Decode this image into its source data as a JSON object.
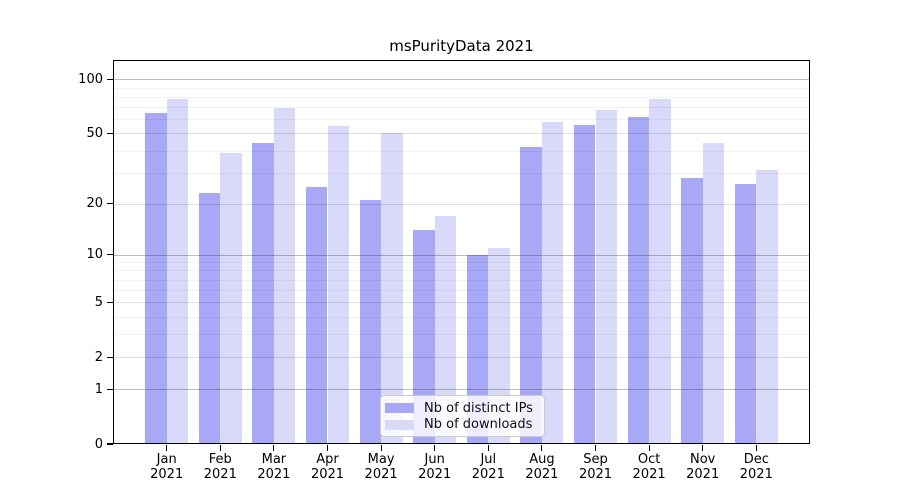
{
  "chart_data": {
    "type": "bar",
    "title": "msPurityData 2021",
    "scale": "log1p",
    "grid": true,
    "categories": [
      "Jan",
      "Feb",
      "Mar",
      "Apr",
      "May",
      "Jun",
      "Jul",
      "Aug",
      "Sep",
      "Oct",
      "Nov",
      "Dec"
    ],
    "category_year": "2021",
    "series": [
      {
        "name": "Nb of distinct IPs",
        "color": "#a8a8f7",
        "values": [
          65,
          23,
          44,
          25,
          21,
          14,
          10,
          42,
          56,
          62,
          28,
          26
        ]
      },
      {
        "name": "Nb of downloads",
        "color": "#d9d9f9",
        "values": [
          78,
          39,
          69,
          55,
          50,
          17,
          11,
          58,
          68,
          78,
          44,
          31
        ]
      }
    ],
    "ylim": [
      0,
      129
    ],
    "yticks": [
      100,
      50,
      20,
      10,
      5,
      2,
      1,
      0
    ],
    "ytick_labels": [
      "100",
      "50",
      "20",
      "10",
      "5",
      "2",
      "1",
      "0"
    ],
    "major_gridlines": [
      1,
      10,
      100
    ],
    "medium_gridlines": [
      2,
      5,
      20,
      50
    ],
    "minor_gridlines": [
      3,
      4,
      6,
      7,
      8,
      9,
      30,
      40,
      60,
      70,
      80,
      90
    ],
    "legend": {
      "position": "lower center",
      "labels": [
        "Nb of distinct IPs",
        "Nb of downloads"
      ]
    }
  }
}
